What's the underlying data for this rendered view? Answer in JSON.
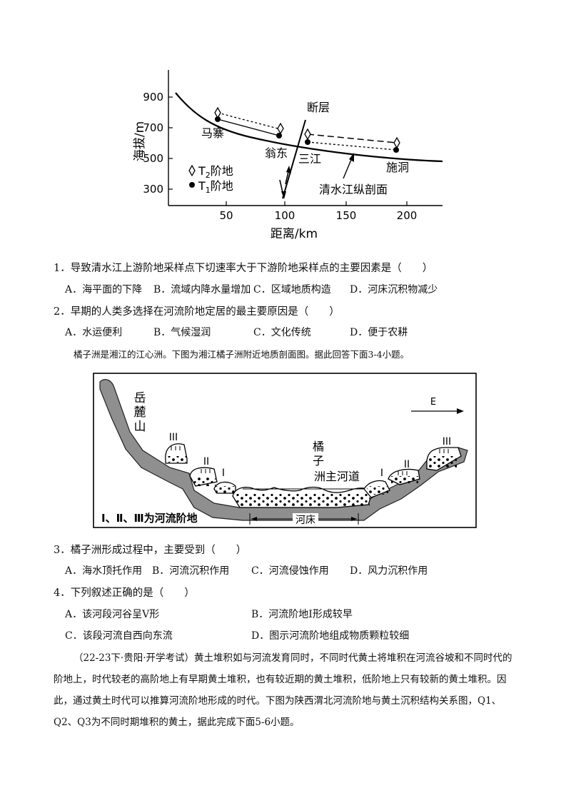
{
  "figure1": {
    "y_axis_label": "海拔/m",
    "x_axis_label": "距离/km",
    "y_ticks": [
      "900",
      "700",
      "500",
      "300"
    ],
    "x_ticks": [
      "50",
      "100",
      "150",
      "200"
    ],
    "place_labels": {
      "mazhai": "马寨",
      "wengdong": "翁东",
      "sanjiang": "三江",
      "shidong": "施洞",
      "fault": "断层",
      "profile": "清水江纵剖面"
    },
    "legend": {
      "t2": {
        "main": "T",
        "sub": "2",
        "tail": "阶地",
        "icon": "diamond-icon"
      },
      "t1": {
        "main": "T",
        "sub": "1",
        "tail": "阶地",
        "icon": "dot-icon"
      }
    }
  },
  "questions": [
    {
      "stem": "1．导致清水江上游阶地采样点下切速率大于下游阶地采样点的主要因素是（　　）",
      "options": [
        "A．海平面的下降",
        "B．流域内降水量增加",
        "C．区域地质构造",
        "D．河床沉积物减少"
      ]
    },
    {
      "stem": "2．早期的人类多选择在河流阶地定居的最主要原因是（　　）",
      "options": [
        "A．水运便利",
        "B．气候湿润",
        "C．文化传统",
        "D．便于农耕"
      ]
    },
    {
      "stem": "3．橘子洲形成过程中，主要受到（　　）",
      "options": [
        "A．海水顶托作用",
        "B．河流沉积作用",
        "C．河流侵蚀作用",
        "D．风力沉积作用"
      ]
    },
    {
      "stem": "4．下列叙述正确的是（　　）",
      "options": [
        "A．该河段河谷呈V形",
        "B．河流阶地Ⅰ形成较早",
        "C．该段河流自西向东流",
        "D．图示河流阶地组成物质颗粒较细"
      ]
    }
  ],
  "intro_34": "橘子洲是湘江的江心洲。下图为湘江橘子洲附近地质剖面图。据此回答下面3-4小题。",
  "figure2": {
    "mountain": [
      "岳",
      "麓",
      "山"
    ],
    "island": [
      "橘",
      "子",
      "洲主河道"
    ],
    "direction": "E",
    "terrace_roman": {
      "i": "I",
      "ii": "II",
      "iii": "III"
    },
    "caption": "Ⅰ、Ⅱ、Ⅲ为河流阶地",
    "riverbed": "河床"
  },
  "intro_56": "（22-23下·贵阳·开学考试）黄土堆积如与河流发育同时，不同时代黄土将堆积在河流谷坡和不同时代的阶地上，时代较老的高阶地上有早期黄土堆积，也有较近期的黄土堆积，低阶地上只有较新的黄土堆积。因此，通过黄土时代可以推算河流阶地形成的时代。下图为陕西渭北河流阶地与黄土沉积结构关系图，Q1、Q2、Q3为不同时期堆积的黄土，据此完成下面5-6小题。"
}
